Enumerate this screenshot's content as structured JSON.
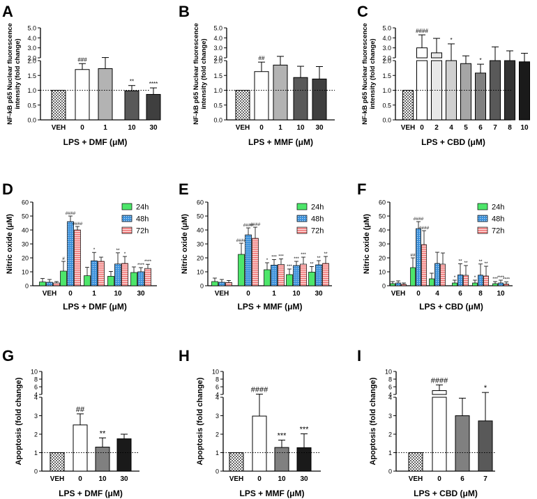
{
  "figure": {
    "background": "#ffffff"
  },
  "chart_data": [
    {
      "panel": "A",
      "type": "bar",
      "variant": "broken",
      "ylabel": "NF-kB p65 Nuclear fluorescence intensity (fold change)",
      "xlabel": "LPS + DMF (μM)",
      "categories": [
        "VEH",
        "0",
        "1",
        "10",
        "30"
      ],
      "values": [
        1.0,
        1.7,
        1.73,
        0.98,
        0.86
      ],
      "errors": [
        0,
        0.2,
        0.3,
        0.18,
        0.22
      ],
      "annotations": [
        "",
        "###",
        "",
        "**",
        "****"
      ],
      "fills": [
        "check",
        "#ffffff",
        "#b3b3b3",
        "#595959",
        "#3f3f3f"
      ],
      "ylim": [
        0,
        5
      ],
      "yticks": [
        "0.0",
        "0.5",
        "1.0",
        "1.5",
        "2.0",
        "2.0",
        "3.0",
        "4.0",
        "5.0"
      ],
      "baseline": 1
    },
    {
      "panel": "B",
      "type": "bar",
      "variant": "broken",
      "ylabel": "NF-kB p65 Nuclear fluorescence intensity (fold change)",
      "xlabel": "LPS + MMF (μM)",
      "categories": [
        "VEH",
        "0",
        "1",
        "10",
        "30"
      ],
      "values": [
        1.0,
        1.63,
        1.85,
        1.43,
        1.38
      ],
      "errors": [
        0,
        0.32,
        0.3,
        0.38,
        0.42
      ],
      "annotations": [
        "",
        "##",
        "",
        "",
        ""
      ],
      "fills": [
        "check",
        "#ffffff",
        "#b3b3b3",
        "#595959",
        "#3f3f3f"
      ],
      "ylim": [
        0,
        5
      ],
      "yticks": [
        "0.0",
        "0.5",
        "1.0",
        "1.5",
        "2.0",
        "2.0",
        "3.0",
        "4.0",
        "5.0"
      ],
      "baseline": 1
    },
    {
      "panel": "C",
      "type": "bar",
      "variant": "broken",
      "ylabel": "NF-kB p65 Nuclear fluorescence intensity (fold change)",
      "xlabel": "LPS + CBD (μM)",
      "categories": [
        "VEH",
        "0",
        "2",
        "4",
        "5",
        "6",
        "7",
        "8",
        "10"
      ],
      "values": [
        1.0,
        3.0,
        2.5,
        2.0,
        1.9,
        1.58,
        2.0,
        2.0,
        1.96
      ],
      "errors": [
        0,
        1.3,
        1.45,
        1.4,
        0.3,
        0.3,
        1.1,
        0.7,
        0.5
      ],
      "annotations": [
        "",
        "####",
        "",
        "*",
        "",
        "*",
        "",
        "",
        ""
      ],
      "fills": [
        "check",
        "#ffffff",
        "#e8e8e8",
        "#d0d0d0",
        "#a6a6a6",
        "#808080",
        "#595959",
        "#333333",
        "#1a1a1a"
      ],
      "ylim": [
        0,
        5
      ],
      "yticks": [
        "0.0",
        "0.5",
        "1.0",
        "1.5",
        "2.0",
        "2.0",
        "3.0",
        "4.0",
        "5.0"
      ],
      "baseline": 1
    },
    {
      "panel": "D",
      "type": "bar",
      "variant": "grouped",
      "ylabel": "Nitric oxide (μM)",
      "xlabel": "LPS + DMF (μM)",
      "categories": [
        "VEH",
        "0",
        "1",
        "10",
        "30"
      ],
      "series": [
        {
          "name": "24h",
          "color": "#4de66a",
          "pattern": "solid",
          "values": [
            2.7,
            10.5,
            7.2,
            6.8,
            9.5
          ],
          "errors": [
            2.5,
            7,
            6,
            3.5,
            4
          ],
          "annotations": [
            "",
            "#",
            "",
            "",
            ""
          ]
        },
        {
          "name": "48h",
          "color": "#3a8fd9",
          "pattern": "dots",
          "values": [
            2.5,
            46.0,
            17.9,
            15.6,
            10.0
          ],
          "errors": [
            2,
            4,
            6,
            8,
            3
          ],
          "annotations": [
            "",
            "####",
            "*",
            "**",
            "****"
          ]
        },
        {
          "name": "72h",
          "color": "#ee6a6a",
          "pattern": "hlines",
          "values": [
            2.0,
            40.0,
            17.5,
            16.0,
            12.4
          ],
          "errors": [
            1,
            2.5,
            3,
            5,
            3
          ],
          "annotations": [
            "",
            "####",
            "",
            "*",
            "****"
          ]
        }
      ],
      "ylim": [
        0,
        60
      ],
      "yticks": [
        "0",
        "10",
        "20",
        "30",
        "40",
        "50",
        "60"
      ],
      "legend": "top-right"
    },
    {
      "panel": "E",
      "type": "bar",
      "variant": "grouped",
      "ylabel": "Nitric oxide (μM)",
      "xlabel": "LPS + MMF (μM)",
      "categories": [
        "VEH",
        "0",
        "1",
        "10",
        "30"
      ],
      "series": [
        {
          "name": "24h",
          "color": "#4de66a",
          "pattern": "solid",
          "values": [
            3.0,
            22.5,
            11.5,
            8.0,
            9.8
          ],
          "errors": [
            2.5,
            8,
            5,
            4,
            4
          ],
          "annotations": [
            "",
            "####",
            "*",
            "***",
            "**"
          ]
        },
        {
          "name": "48h",
          "color": "#3a8fd9",
          "pattern": "dots",
          "values": [
            2.5,
            36.5,
            14.8,
            14.5,
            15.0
          ],
          "errors": [
            2,
            5,
            4,
            3,
            3
          ],
          "annotations": [
            "",
            "####",
            "***",
            "***",
            "**"
          ]
        },
        {
          "name": "72h",
          "color": "#ee6a6a",
          "pattern": "hlines",
          "values": [
            2.3,
            34.0,
            15.3,
            15.5,
            16.0
          ],
          "errors": [
            1.5,
            8,
            4,
            5,
            5
          ],
          "annotations": [
            "",
            "####",
            "***",
            "***",
            "**"
          ]
        }
      ],
      "ylim": [
        0,
        60
      ],
      "yticks": [
        "0",
        "10",
        "20",
        "30",
        "40",
        "50",
        "60"
      ],
      "legend": "top-right"
    },
    {
      "panel": "F",
      "type": "bar",
      "variant": "grouped",
      "ylabel": "Nitric oxide (μM)",
      "xlabel": "LPS + CBD (μM)",
      "categories": [
        "VEH",
        "0",
        "4",
        "6",
        "8",
        "10"
      ],
      "series": [
        {
          "name": "24h",
          "color": "#4de66a",
          "pattern": "solid",
          "values": [
            1.5,
            13.0,
            5.0,
            2.0,
            2.0,
            1.5
          ],
          "errors": [
            1.5,
            7,
            4,
            2,
            2,
            1.5
          ],
          "annotations": [
            "",
            "##",
            "",
            "*",
            "*",
            "***"
          ]
        },
        {
          "name": "48h",
          "color": "#3a8fd9",
          "pattern": "dots",
          "values": [
            2.0,
            41.0,
            16.0,
            7.8,
            7.6,
            2.0
          ],
          "errors": [
            1.5,
            5,
            8,
            8,
            8,
            2
          ],
          "annotations": [
            "",
            "####",
            "",
            "**",
            "**",
            "****"
          ]
        },
        {
          "name": "72h",
          "color": "#ee6a6a",
          "pattern": "hlines",
          "values": [
            1.0,
            29.5,
            15.5,
            7.5,
            7.0,
            1.2
          ],
          "errors": [
            1,
            10,
            8,
            7,
            7,
            1.5
          ],
          "annotations": [
            "",
            "####",
            "",
            "**",
            "**",
            "****"
          ]
        }
      ],
      "ylim": [
        0,
        60
      ],
      "yticks": [
        "0",
        "10",
        "20",
        "30",
        "40",
        "50",
        "60"
      ],
      "legend": "top-right"
    },
    {
      "panel": "G",
      "type": "bar",
      "variant": "broken",
      "ylabel": "Apoptosis (fold change)",
      "xlabel": "LPS + DMF (μM)",
      "categories": [
        "VEH",
        "0",
        "10",
        "30"
      ],
      "values": [
        1.0,
        2.5,
        1.3,
        1.75
      ],
      "errors": [
        0,
        0.6,
        0.5,
        0.25
      ],
      "annotations": [
        "",
        "##",
        "**",
        ""
      ],
      "fills": [
        "check",
        "#ffffff",
        "#808080",
        "#1a1a1a"
      ],
      "ylim": [
        0,
        10
      ],
      "yticks": [
        "0",
        "1",
        "2",
        "3",
        "4",
        "4",
        "6",
        "8",
        "10"
      ],
      "baseline": 1
    },
    {
      "panel": "H",
      "type": "bar",
      "variant": "broken",
      "ylabel": "Apoptosis (fold change)",
      "xlabel": "LPS + MMF (μM)",
      "categories": [
        "VEH",
        "0",
        "10",
        "30"
      ],
      "values": [
        1.0,
        2.98,
        1.28,
        1.27
      ],
      "errors": [
        0,
        1.1,
        0.4,
        0.75
      ],
      "annotations": [
        "",
        "####",
        "***",
        "***"
      ],
      "fills": [
        "check",
        "#ffffff",
        "#808080",
        "#1a1a1a"
      ],
      "ylim": [
        0,
        10
      ],
      "yticks": [
        "0",
        "1",
        "2",
        "3",
        "4",
        "4",
        "6",
        "8",
        "10"
      ],
      "baseline": 1
    },
    {
      "panel": "I",
      "type": "bar",
      "variant": "broken",
      "ylabel": "Apoptosis (fold change)",
      "xlabel": "LPS + CBD (μM)",
      "categories": [
        "VEH",
        "0",
        "6",
        "7"
      ],
      "values": [
        1.0,
        5.0,
        3.0,
        2.72
      ],
      "errors": [
        0,
        1.5,
        0.95,
        1.8
      ],
      "annotations": [
        "",
        "####",
        "",
        "*"
      ],
      "fills": [
        "check",
        "#ffffff",
        "#808080",
        "#595959"
      ],
      "ylim": [
        0,
        10
      ],
      "yticks": [
        "0",
        "1",
        "2",
        "3",
        "4",
        "4",
        "6",
        "8",
        "10"
      ],
      "baseline": 1
    }
  ]
}
